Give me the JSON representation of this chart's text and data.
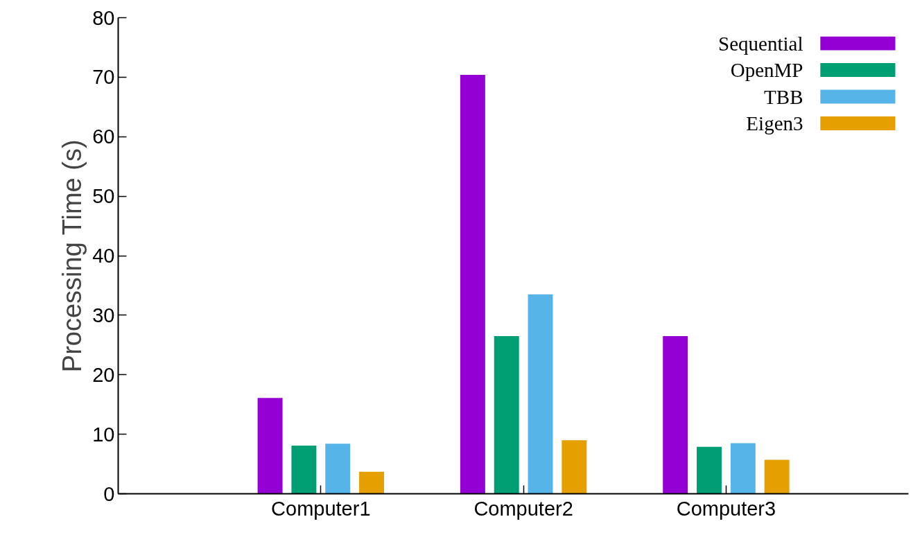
{
  "chart_data": {
    "type": "bar",
    "ylabel": "Processing Time (s)",
    "categories": [
      "Computer1",
      "Computer2",
      "Computer3"
    ],
    "series": [
      {
        "name": "Sequential",
        "color": "#9400d3",
        "values": [
          16.1,
          70.4,
          26.5
        ]
      },
      {
        "name": "OpenMP",
        "color": "#009e73",
        "values": [
          8.1,
          26.5,
          7.9
        ]
      },
      {
        "name": "TBB",
        "color": "#56b4e9",
        "values": [
          8.4,
          33.5,
          8.5
        ]
      },
      {
        "name": "Eigen3",
        "color": "#e69f00",
        "values": [
          3.7,
          9.0,
          5.7
        ]
      }
    ],
    "ylim": [
      0,
      80
    ],
    "yticks": [
      0,
      10,
      20,
      30,
      40,
      50,
      60,
      70,
      80
    ],
    "grid": false,
    "legend": "top right"
  }
}
